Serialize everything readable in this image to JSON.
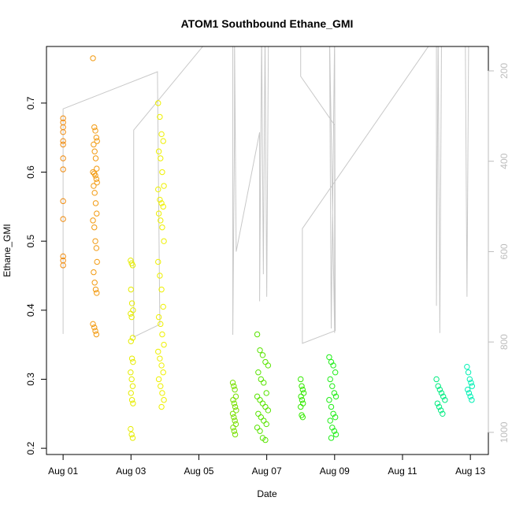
{
  "chart_data": {
    "type": "scatter",
    "title": "ATOM1 Southbound Ethane_GMI",
    "x_label": "Date",
    "y_label": "Ethane_GMI",
    "xlim": [
      -0.49,
      12.53
    ],
    "ylim": [
      0.191,
      0.782
    ],
    "y2lim": [
      1049,
      146
    ],
    "xticks": [
      {
        "value": 0,
        "label": "Aug 01"
      },
      {
        "value": 2,
        "label": "Aug 03"
      },
      {
        "value": 4,
        "label": "Aug 05"
      },
      {
        "value": 6,
        "label": "Aug 07"
      },
      {
        "value": 8,
        "label": "Aug 09"
      },
      {
        "value": 10,
        "label": "Aug 11"
      },
      {
        "value": 12,
        "label": "Aug 13"
      }
    ],
    "yticks": [
      0.2,
      0.3,
      0.4,
      0.5,
      0.6,
      0.7
    ],
    "y2ticks": [
      200,
      400,
      600,
      800,
      1000
    ],
    "y2_color": "#bdbdbd",
    "series": [
      {
        "color": "#f08c10",
        "x": [
          0,
          0,
          0,
          0,
          0,
          0,
          0,
          0,
          0,
          0,
          0,
          0,
          0
        ],
        "values": [
          0.678,
          0.672,
          0.665,
          0.658,
          0.645,
          0.64,
          0.62,
          0.604,
          0.558,
          0.532,
          0.478,
          0.472,
          0.465
        ]
      },
      {
        "color": "#f29a10",
        "x": [
          0.88,
          0.92,
          0.95,
          0.98,
          1.0,
          0.9,
          0.93,
          0.96,
          0.99,
          0.88,
          0.92,
          0.95,
          0.98,
          1.0,
          0.9,
          0.93,
          0.96,
          0.99,
          0.88,
          0.92,
          0.95,
          0.98,
          1.0,
          0.9,
          0.93,
          0.96,
          0.99,
          0.88,
          0.92,
          0.95,
          0.98
        ],
        "values": [
          0.765,
          0.665,
          0.66,
          0.65,
          0.645,
          0.64,
          0.63,
          0.62,
          0.605,
          0.6,
          0.598,
          0.595,
          0.59,
          0.585,
          0.58,
          0.57,
          0.555,
          0.54,
          0.53,
          0.52,
          0.5,
          0.49,
          0.47,
          0.455,
          0.44,
          0.43,
          0.425,
          0.38,
          0.375,
          0.37,
          0.365
        ]
      },
      {
        "color": "#e6ec00",
        "x": [
          1.99,
          2.02,
          2.05,
          2.0,
          2.03,
          2.06,
          1.99,
          2.02,
          2.05,
          2.0,
          2.03,
          2.06,
          1.99,
          2.02,
          2.05,
          2.0,
          2.03,
          2.06,
          1.99,
          2.02,
          2.05
        ],
        "values": [
          0.472,
          0.468,
          0.465,
          0.43,
          0.41,
          0.4,
          0.395,
          0.39,
          0.36,
          0.355,
          0.33,
          0.325,
          0.31,
          0.3,
          0.29,
          0.28,
          0.27,
          0.265,
          0.228,
          0.22,
          0.215
        ]
      },
      {
        "color": "#eef000",
        "x": [
          2.8,
          2.85,
          2.9,
          2.95,
          2.82,
          2.87,
          2.92,
          2.97,
          2.8,
          2.85,
          2.9,
          2.95,
          2.82,
          2.87,
          2.92,
          2.97,
          2.8,
          2.85,
          2.9,
          2.95,
          2.82,
          2.87,
          2.92,
          2.97,
          2.8,
          2.85,
          2.9,
          2.95,
          2.82,
          2.87,
          2.92,
          2.97,
          2.9
        ],
        "values": [
          0.7,
          0.68,
          0.655,
          0.645,
          0.63,
          0.62,
          0.6,
          0.58,
          0.575,
          0.56,
          0.555,
          0.55,
          0.54,
          0.53,
          0.52,
          0.5,
          0.47,
          0.45,
          0.43,
          0.405,
          0.39,
          0.38,
          0.365,
          0.35,
          0.34,
          0.33,
          0.32,
          0.31,
          0.3,
          0.29,
          0.28,
          0.27,
          0.26
        ]
      },
      {
        "color": "#78e000",
        "x": [
          5.0,
          5.03,
          5.06,
          5.09,
          5.01,
          5.04,
          5.07,
          5.1,
          5.0,
          5.03,
          5.06,
          5.09,
          5.01,
          5.04,
          5.07
        ],
        "values": [
          0.295,
          0.29,
          0.285,
          0.275,
          0.27,
          0.265,
          0.26,
          0.255,
          0.25,
          0.245,
          0.24,
          0.235,
          0.23,
          0.225,
          0.22
        ]
      },
      {
        "color": "#58e400",
        "x": [
          5.72,
          5.8,
          5.88,
          5.96,
          6.04,
          5.75,
          5.83,
          5.91,
          5.99,
          5.72,
          5.8,
          5.88,
          5.96,
          6.04,
          5.75,
          5.83,
          5.91,
          5.99,
          5.72,
          5.8,
          5.88,
          5.96
        ],
        "values": [
          0.365,
          0.342,
          0.335,
          0.325,
          0.32,
          0.31,
          0.3,
          0.295,
          0.28,
          0.275,
          0.27,
          0.265,
          0.26,
          0.255,
          0.25,
          0.245,
          0.24,
          0.235,
          0.23,
          0.225,
          0.215,
          0.212
        ]
      },
      {
        "color": "#34ea00",
        "x": [
          7.0,
          7.03,
          7.06,
          7.09,
          7.01,
          7.04,
          7.07,
          7.0,
          7.03,
          7.06
        ],
        "values": [
          0.3,
          0.29,
          0.285,
          0.28,
          0.275,
          0.27,
          0.265,
          0.26,
          0.248,
          0.245
        ]
      },
      {
        "color": "#20ee18",
        "x": [
          7.84,
          7.9,
          7.96,
          8.02,
          7.87,
          7.93,
          7.99,
          8.04,
          7.84,
          7.9,
          7.96,
          8.02,
          7.87,
          7.93,
          7.99,
          8.04,
          7.9
        ],
        "values": [
          0.332,
          0.325,
          0.32,
          0.31,
          0.3,
          0.29,
          0.28,
          0.275,
          0.27,
          0.26,
          0.25,
          0.245,
          0.24,
          0.23,
          0.225,
          0.22,
          0.215
        ]
      },
      {
        "color": "#00ec80",
        "x": [
          11.0,
          11.05,
          11.1,
          11.15,
          11.2,
          11.25,
          11.03,
          11.08,
          11.13,
          11.18
        ],
        "values": [
          0.3,
          0.29,
          0.285,
          0.28,
          0.275,
          0.27,
          0.265,
          0.26,
          0.255,
          0.25
        ]
      },
      {
        "color": "#00f0b4",
        "x": [
          11.9,
          11.94,
          11.98,
          12.02,
          12.05,
          11.92,
          11.96,
          12.0,
          12.04
        ],
        "values": [
          0.318,
          0.31,
          0.3,
          0.295,
          0.29,
          0.285,
          0.28,
          0.275,
          0.27
        ]
      }
    ],
    "lines": [
      {
        "color": "#c8c8c8",
        "axis": "y2",
        "x": [
          0,
          0,
          2.78,
          2.85,
          2.08,
          2.08,
          4.4,
          5.0,
          5.0,
          5.05,
          5.05,
          5.1,
          5.79,
          5.79,
          5.85,
          5.9,
          5.95,
          6.0,
          6.05,
          7.0,
          7.0,
          8.0,
          8.0,
          7.85,
          7.9,
          8.0,
          8.02,
          7.05,
          7.05,
          11.0,
          11.0,
          11.05,
          11.1,
          11.15,
          11.85,
          11.9,
          11.95
        ],
        "values": [
          782,
          284,
          202,
          761,
          789,
          331,
          120,
          120,
          784,
          339,
          120,
          600,
          336,
          710,
          120,
          650,
          120,
          700,
          120,
          120,
          212,
          320,
          780,
          120,
          770,
          120,
          775,
          803,
          549,
          120,
          720,
          120,
          780,
          120,
          120,
          700,
          120
        ]
      }
    ]
  }
}
